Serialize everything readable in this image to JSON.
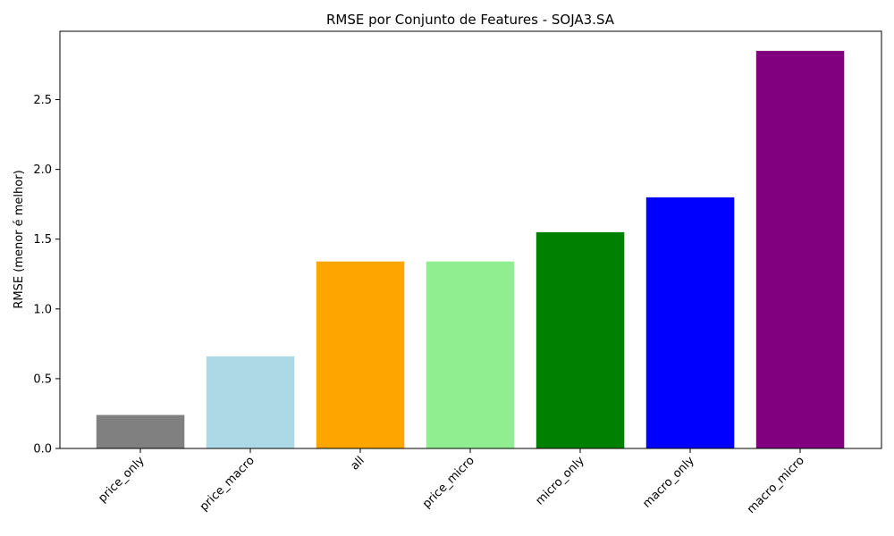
{
  "chart_data": {
    "type": "bar",
    "title": "RMSE por Conjunto de Features - SOJA3.SA",
    "xlabel": "",
    "ylabel": "RMSE (menor é melhor)",
    "categories": [
      "price_only",
      "price_macro",
      "all",
      "price_micro",
      "micro_only",
      "macro_only",
      "macro_micro"
    ],
    "values": [
      0.24,
      0.66,
      1.34,
      1.34,
      1.55,
      1.8,
      2.85
    ],
    "colors": [
      "#808080",
      "#add8e6",
      "#ffa500",
      "#90ee90",
      "#008000",
      "#0000ff",
      "#800080"
    ],
    "ylim": [
      0,
      2.99
    ],
    "yticks": [
      "0.0",
      "0.5",
      "1.0",
      "1.5",
      "2.0",
      "2.5"
    ],
    "ytick_values": [
      0,
      0.5,
      1.0,
      1.5,
      2.0,
      2.5
    ],
    "grid": false,
    "legend": "none"
  }
}
